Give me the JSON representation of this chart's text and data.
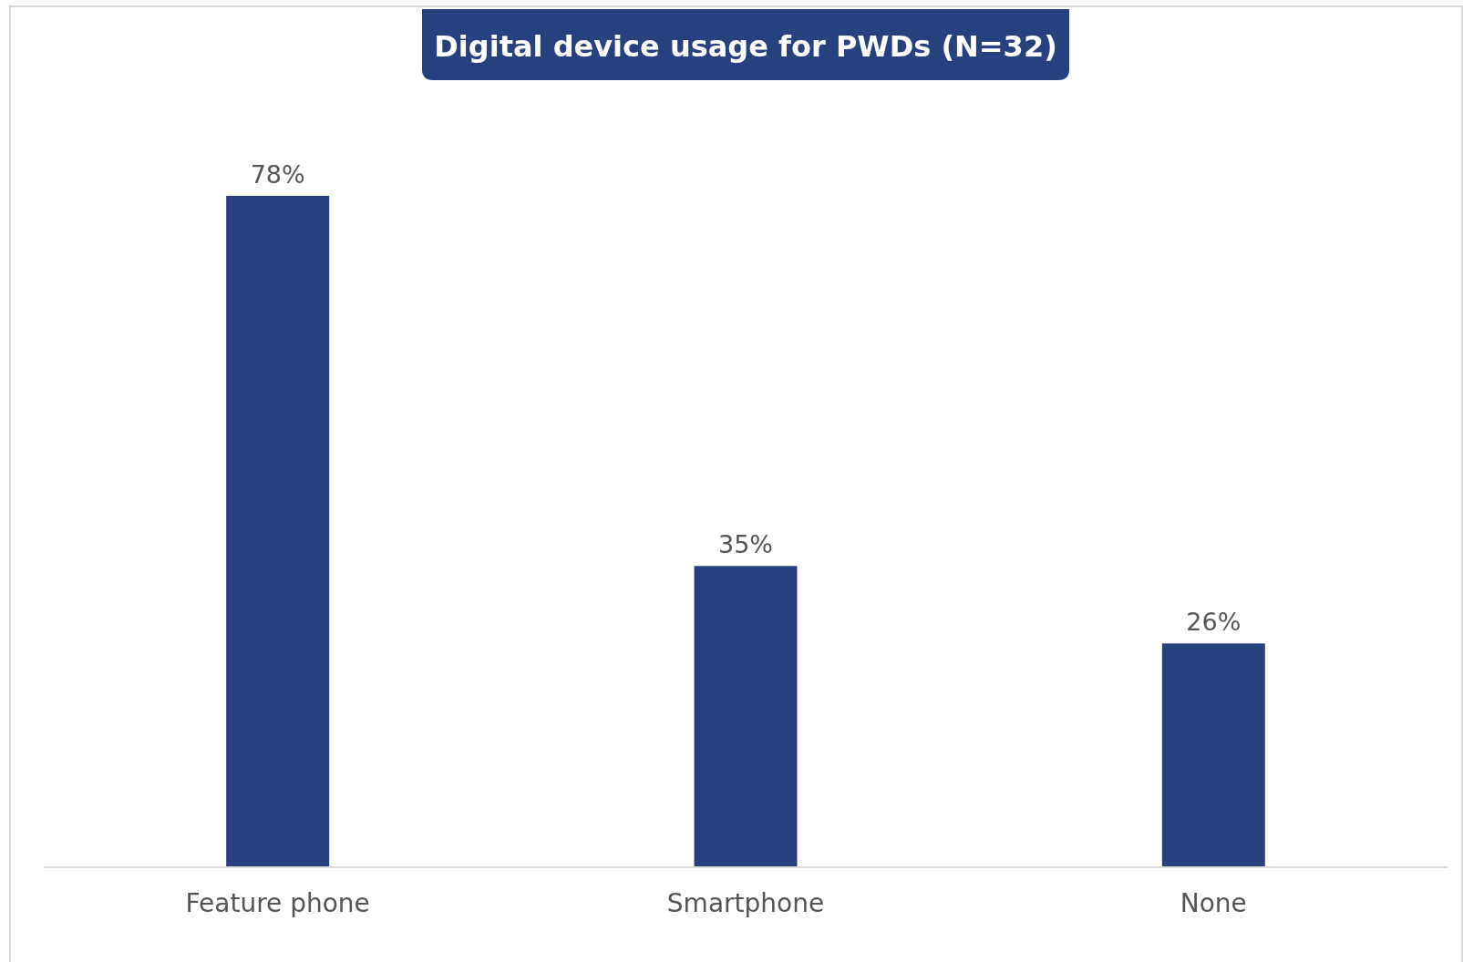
{
  "chart_data": {
    "type": "bar",
    "title": "Digital device usage for PWDs (N=32)",
    "categories": [
      "Feature phone",
      "Smartphone",
      "None"
    ],
    "values": [
      78,
      35,
      26
    ],
    "color": "#27417e",
    "value_labels": [
      "78%",
      "35%",
      "26%"
    ],
    "tick_labels": "x"
  }
}
